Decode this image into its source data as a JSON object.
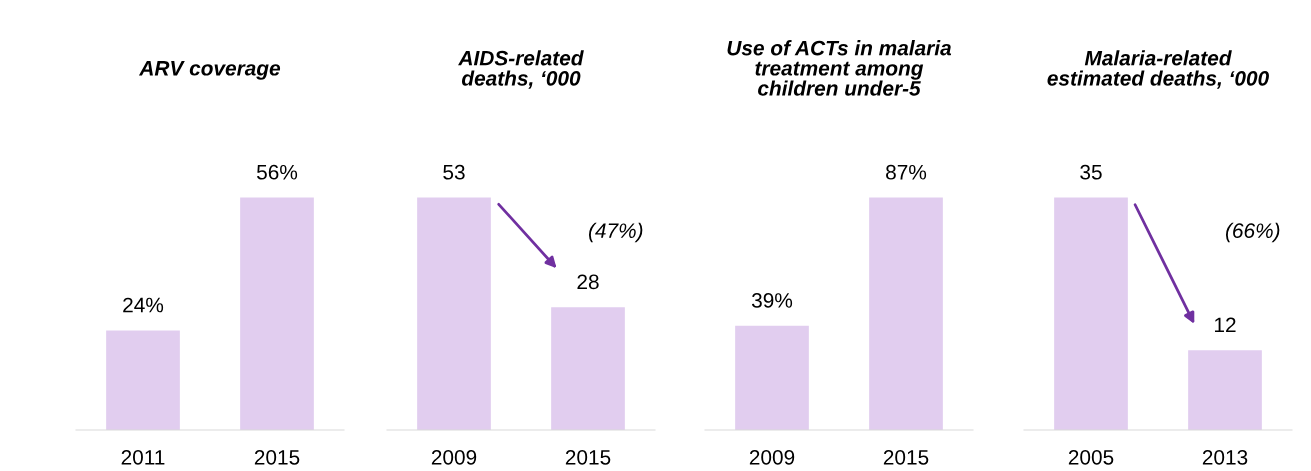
{
  "chart_data": [
    {
      "type": "bar",
      "title": "ARV coverage",
      "categories": [
        "2011",
        "2015"
      ],
      "values": [
        24,
        56
      ],
      "value_labels": [
        "24%",
        "56%"
      ],
      "color": "#e1cdef"
    },
    {
      "type": "bar",
      "title": "AIDS-related\ndeaths, ‘000",
      "categories": [
        "2009",
        "2015"
      ],
      "values": [
        53,
        28
      ],
      "data_labels": true,
      "color": "#e1cdef",
      "annotations": [
        "(47%)"
      ]
    },
    {
      "type": "bar",
      "title": "Use of ACTs in malaria\ntreatment among\nchildren under-5",
      "categories": [
        "2009",
        "2015"
      ],
      "values": [
        39,
        87
      ],
      "value_labels": [
        "39%",
        "87%"
      ],
      "color": "#e1cdef"
    },
    {
      "type": "bar",
      "title": "Malaria-related\nestimated deaths, ‘000",
      "categories": [
        "2005",
        "2013"
      ],
      "values": [
        35,
        12
      ],
      "data_labels": true,
      "color": "#e1cdef",
      "annotations": [
        "(66%)"
      ]
    }
  ]
}
